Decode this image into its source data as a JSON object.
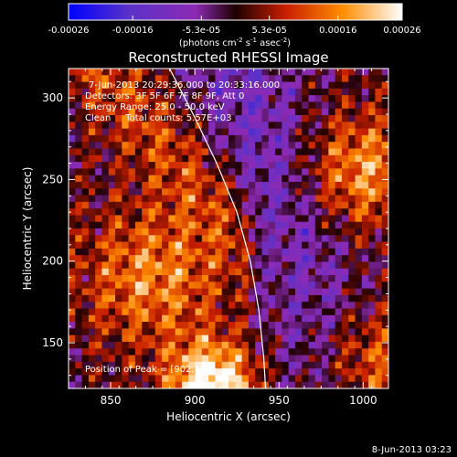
{
  "chart_data": {
    "type": "heatmap",
    "title": "Reconstructed RHESSI Image",
    "xlabel": "Heliocentric X (arcsec)",
    "ylabel": "Heliocentric Y (arcsec)",
    "xlim": [
      825,
      1015
    ],
    "ylim": [
      122,
      318
    ],
    "x_ticks": [
      850,
      900,
      950,
      1000
    ],
    "y_ticks": [
      150,
      200,
      250,
      300
    ],
    "colorbar": {
      "min": -0.00026,
      "max": 0.00026,
      "ticks": [
        -0.00026,
        -0.00016,
        -5.3e-05,
        5.3e-05,
        0.00016,
        0.00026
      ],
      "tick_labels": [
        "-0.00026",
        "-0.00016",
        "-5.3e-05",
        "5.3e-05",
        "0.00016",
        "0.00026"
      ],
      "label_prefix": "(photons cm",
      "label_exp1": "-2",
      "label_mid": " s",
      "label_exp2": "-1",
      "label_suffix": " asec",
      "label_exp3": "-2",
      "label_close": ")",
      "colors": [
        "#0000ff",
        "#5a32c8",
        "#8c2ab4",
        "#1e0000",
        "#c81e00",
        "#ff8c00",
        "#ffffff"
      ]
    },
    "annotations": [
      "7-Jun-2013 20:29:36.000 to 20:33:16.000",
      "Detectors: 3F 5F 6F 7F 8F 9F, Att 0",
      "Energy Range: 25.0 - 50.0 keV",
      "Clean     Total counts: 5.57E+03"
    ],
    "peak_label": "Position of Peak = [902,122]",
    "peak": [
      902,
      122
    ],
    "limb": [
      [
        885,
        318
      ],
      [
        900,
        288
      ],
      [
        913,
        260
      ],
      [
        925,
        230
      ],
      [
        933,
        200
      ],
      [
        938,
        170
      ],
      [
        941,
        140
      ],
      [
        942,
        122
      ]
    ],
    "sources": [
      {
        "x": 910,
        "y": 125,
        "amp": 1.0,
        "r": 18
      },
      {
        "x": 875,
        "y": 190,
        "amp": 0.55,
        "r": 30
      },
      {
        "x": 1000,
        "y": 255,
        "amp": 0.6,
        "r": 25
      },
      {
        "x": 1005,
        "y": 135,
        "amp": 0.5,
        "r": 25
      }
    ]
  },
  "footer": {
    "date": "8-Jun-2013 03:23"
  }
}
